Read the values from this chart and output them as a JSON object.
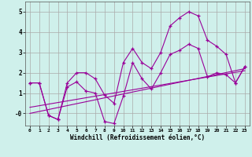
{
  "xlabel": "Windchill (Refroidissement éolien,°C)",
  "bg_color": "#cff0eb",
  "grid_color": "#aaaaaa",
  "line_color": "#990099",
  "xlim": [
    -0.5,
    23.5
  ],
  "ylim": [
    -0.6,
    5.5
  ],
  "xticks": [
    0,
    1,
    2,
    3,
    4,
    5,
    6,
    7,
    8,
    9,
    10,
    11,
    12,
    13,
    14,
    15,
    16,
    17,
    18,
    19,
    20,
    21,
    22,
    23
  ],
  "yticks": [
    0,
    1,
    2,
    3,
    4,
    5
  ],
  "ytick_labels": [
    "-0",
    "1",
    "2",
    "3",
    "4",
    "5"
  ],
  "series1_x": [
    0,
    1,
    2,
    3,
    4,
    5,
    6,
    7,
    8,
    9,
    10,
    11,
    12,
    13,
    14,
    15,
    16,
    17,
    18,
    19,
    20,
    21,
    22,
    23
  ],
  "series1_y": [
    1.5,
    1.5,
    -0.1,
    -0.3,
    1.5,
    2.0,
    2.0,
    1.7,
    0.9,
    0.5,
    2.5,
    3.2,
    2.5,
    2.2,
    3.0,
    4.3,
    4.7,
    5.0,
    4.8,
    3.6,
    3.3,
    2.9,
    1.5,
    2.3
  ],
  "series2_x": [
    0,
    1,
    2,
    3,
    4,
    5,
    6,
    7,
    8,
    9,
    10,
    11,
    12,
    13,
    14,
    15,
    16,
    17,
    18,
    19,
    20,
    21,
    22,
    23
  ],
  "series2_y": [
    1.5,
    1.5,
    -0.1,
    -0.3,
    1.3,
    1.55,
    1.1,
    1.0,
    -0.4,
    -0.5,
    0.85,
    2.5,
    1.7,
    1.2,
    2.0,
    2.9,
    3.1,
    3.4,
    3.2,
    1.8,
    2.0,
    1.9,
    1.5,
    2.3
  ],
  "trend1_x": [
    0,
    23
  ],
  "trend1_y": [
    0.3,
    2.1
  ],
  "trend2_x": [
    0,
    23
  ],
  "trend2_y": [
    0.0,
    2.2
  ]
}
